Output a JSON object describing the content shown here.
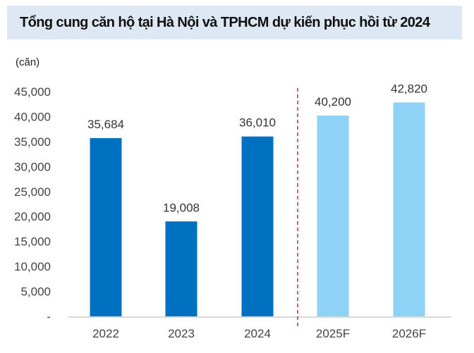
{
  "chart_data": {
    "type": "bar",
    "title": "Tổng cung căn hộ tại Hà Nội và TPHCM dự kiến phục hồi từ 2024",
    "ylabel": "(căn)",
    "xlabel": "",
    "categories": [
      "2022",
      "2023",
      "2024",
      "2025F",
      "2026F"
    ],
    "values": [
      35684,
      19008,
      36010,
      40200,
      42820
    ],
    "value_labels": [
      "35,684",
      "19,008",
      "36,010",
      "40,200",
      "42,820"
    ],
    "ylim": [
      0,
      45000
    ],
    "yticks": [
      0,
      5000,
      10000,
      15000,
      20000,
      25000,
      30000,
      35000,
      40000,
      45000
    ],
    "ytick_labels": [
      "-",
      "5,000",
      "10,000",
      "15,000",
      "20,000",
      "25,000",
      "30,000",
      "35,000",
      "40,000",
      "45,000"
    ],
    "forecast_from_index": 3,
    "colors": {
      "actual": "#0070c0",
      "forecast": "#8ed3f5",
      "divider": "#e02020",
      "axis": "#d9d9d9"
    },
    "grid": false,
    "legend": "none"
  }
}
